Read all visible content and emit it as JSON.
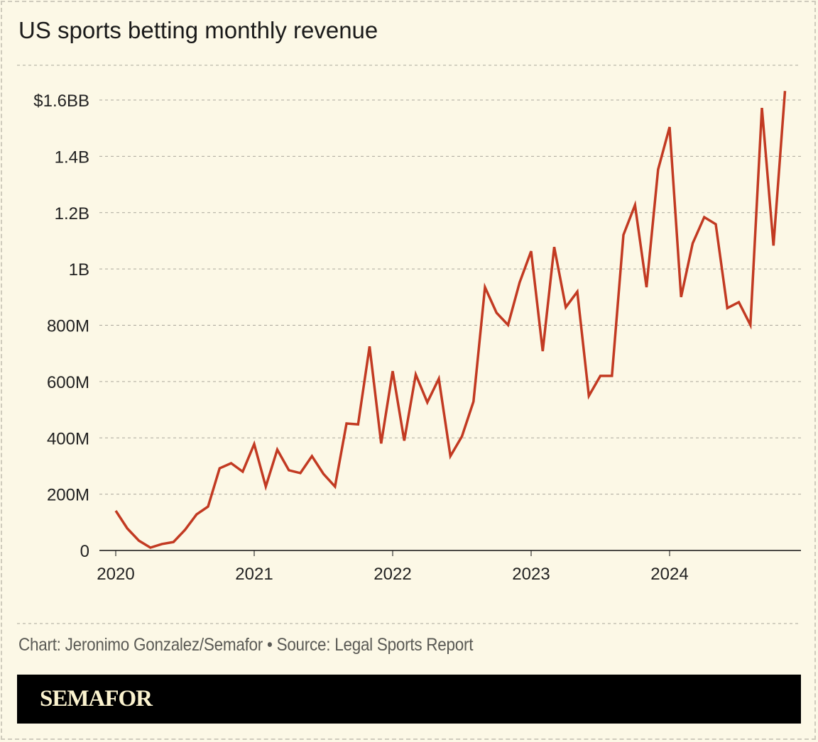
{
  "title": "US sports betting monthly revenue",
  "credit": "Chart: Jeronimo Gonzalez/Semafor • Source: Legal Sports Report",
  "brand": "SEMAFOR",
  "colors": {
    "line": "#c23a22",
    "background": "#fcf8e6",
    "grid": "#aaa79c"
  },
  "chart_data": {
    "type": "line",
    "title": "US sports betting monthly revenue",
    "xlabel": "",
    "ylabel": "",
    "ylim": [
      0,
      1600000000
    ],
    "grid": true,
    "y_ticks": [
      {
        "value": 0,
        "label": "0"
      },
      {
        "value": 200000000,
        "label": "200M"
      },
      {
        "value": 400000000,
        "label": "400M"
      },
      {
        "value": 600000000,
        "label": "600M"
      },
      {
        "value": 800000000,
        "label": "800M"
      },
      {
        "value": 1000000000,
        "label": "1B"
      },
      {
        "value": 1200000000,
        "label": "1.2B"
      },
      {
        "value": 1400000000,
        "label": "1.4B"
      },
      {
        "value": 1600000000,
        "label": "$1.6BB"
      }
    ],
    "x_ticks": [
      "2020",
      "2021",
      "2022",
      "2023",
      "2024"
    ],
    "x": [
      "2020-01",
      "2020-02",
      "2020-03",
      "2020-04",
      "2020-05",
      "2020-06",
      "2020-07",
      "2020-08",
      "2020-09",
      "2020-10",
      "2020-11",
      "2020-12",
      "2021-01",
      "2021-02",
      "2021-03",
      "2021-04",
      "2021-05",
      "2021-06",
      "2021-07",
      "2021-08",
      "2021-09",
      "2021-10",
      "2021-11",
      "2021-12",
      "2022-01",
      "2022-02",
      "2022-03",
      "2022-04",
      "2022-05",
      "2022-06",
      "2022-07",
      "2022-08",
      "2022-09",
      "2022-10",
      "2022-11",
      "2022-12",
      "2023-01",
      "2023-02",
      "2023-03",
      "2023-04",
      "2023-05",
      "2023-06",
      "2023-07",
      "2023-08",
      "2023-09",
      "2023-10",
      "2023-11",
      "2023-12",
      "2024-01",
      "2024-02",
      "2024-03",
      "2024-04",
      "2024-05",
      "2024-06",
      "2024-07",
      "2024-08",
      "2024-09",
      "2024-10",
      "2024-11"
    ],
    "values": [
      141,
      78,
      35,
      10,
      23,
      30,
      73,
      128,
      156,
      292,
      310,
      280,
      378,
      227,
      358,
      285,
      275,
      335,
      272,
      227,
      451,
      448,
      725,
      380,
      637,
      390,
      625,
      526,
      610,
      335,
      405,
      529,
      935,
      844,
      801,
      952,
      1063,
      708,
      1078,
      864,
      919,
      549,
      620,
      620,
      1121,
      1227,
      935,
      1353,
      1504,
      900,
      1091,
      1184,
      1159,
      861,
      882,
      801,
      1572,
      1083,
      1632
    ],
    "value_unit": "millions USD"
  }
}
